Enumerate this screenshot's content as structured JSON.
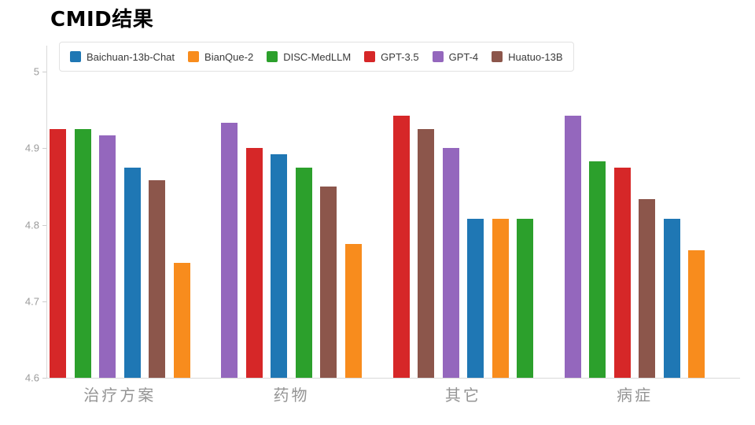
{
  "chart_data": {
    "type": "bar",
    "title": "CMID结果",
    "categories": [
      "治疗方案",
      "药物",
      "其它",
      "病症"
    ],
    "series": [
      {
        "name": "Baichuan-13b-Chat",
        "color": "#1f77b4",
        "values": [
          4.875,
          4.892,
          4.808,
          4.808
        ]
      },
      {
        "name": "BianQue-2",
        "color": "#f88c1d",
        "values": [
          4.75,
          4.775,
          4.808,
          4.767
        ]
      },
      {
        "name": "DISC-MedLLM",
        "color": "#2ca02c",
        "values": [
          4.925,
          4.875,
          4.808,
          4.883
        ]
      },
      {
        "name": "GPT-3.5",
        "color": "#d62728",
        "values": [
          4.925,
          4.9,
          4.942,
          4.875
        ]
      },
      {
        "name": "GPT-4",
        "color": "#9467bd",
        "values": [
          4.917,
          4.933,
          4.9,
          4.942
        ]
      },
      {
        "name": "Huatuo-13B",
        "color": "#8c564b",
        "values": [
          4.858,
          4.85,
          4.925,
          4.833
        ]
      }
    ],
    "bar_order": [
      [
        "GPT-3.5",
        "DISC-MedLLM",
        "GPT-4",
        "Baichuan-13b-Chat",
        "Huatuo-13B",
        "BianQue-2"
      ],
      [
        "GPT-4",
        "GPT-3.5",
        "Baichuan-13b-Chat",
        "DISC-MedLLM",
        "Huatuo-13B",
        "BianQue-2"
      ],
      [
        "GPT-3.5",
        "Huatuo-13B",
        "GPT-4",
        "Baichuan-13b-Chat",
        "BianQue-2",
        "DISC-MedLLM"
      ],
      [
        "GPT-4",
        "DISC-MedLLM",
        "GPT-3.5",
        "Huatuo-13B",
        "Baichuan-13b-Chat",
        "BianQue-2"
      ]
    ],
    "ylim": [
      4.6,
      5.0
    ],
    "yticks": [
      5,
      4.9,
      4.8,
      4.7,
      4.6
    ],
    "ytick_labels": [
      "5",
      "4.9",
      "4.8",
      "4.7",
      "4.6"
    ],
    "xlabel": "",
    "ylabel": "",
    "grid": false,
    "legend_position": "top-left"
  },
  "style": {
    "axis_color": "#d9d9d9",
    "tick_label_color": "#9b9b9b",
    "category_label_color": "#949494",
    "legend_text_color": "#3a3a3a",
    "legend_border_color": "#e2e2e2",
    "title_color": "#000000",
    "background": "#ffffff"
  }
}
